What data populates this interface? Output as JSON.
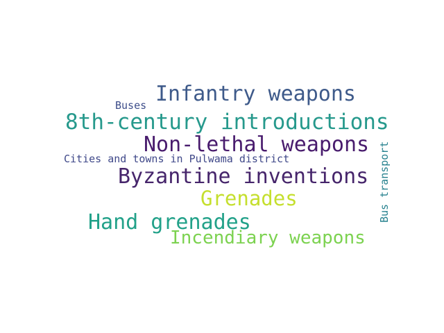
{
  "words": [
    {
      "text": "Infantry weapons",
      "color": "#3e5a8a"
    },
    {
      "text": "Buses",
      "color": "#3d4d8a"
    },
    {
      "text": "8th-century introductions",
      "color": "#26998c"
    },
    {
      "text": "Non-lethal weapons",
      "color": "#481b6d"
    },
    {
      "text": "Cities and towns in Pulwama district",
      "color": "#3f4889"
    },
    {
      "text": "Byzantine inventions",
      "color": "#46256b"
    },
    {
      "text": "Grenades",
      "color": "#c5df2e"
    },
    {
      "text": "Hand grenades",
      "color": "#22a189"
    },
    {
      "text": "Incendiary weapons",
      "color": "#7cd250"
    },
    {
      "text": "Bus transport",
      "color": "#26818e"
    }
  ]
}
